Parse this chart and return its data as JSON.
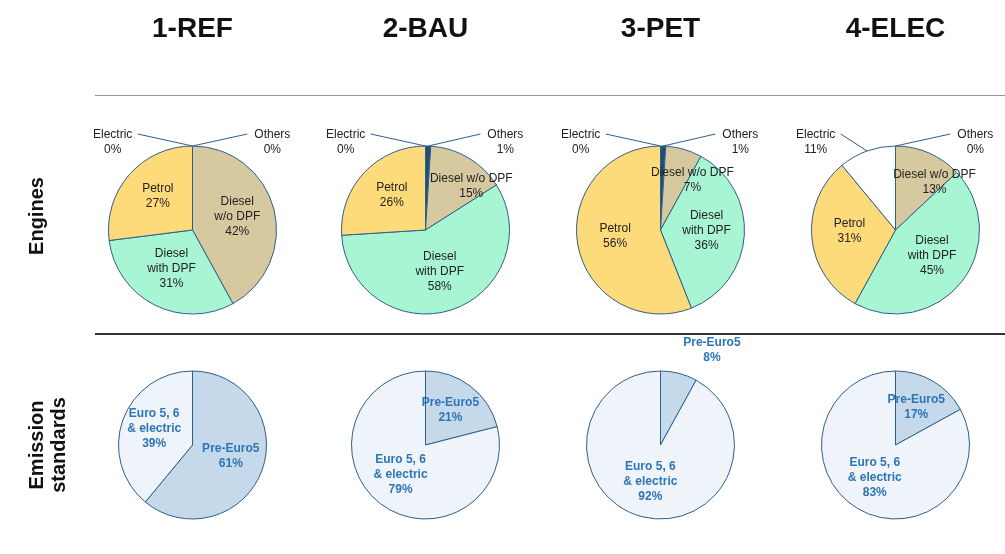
{
  "chart_data": [
    {
      "type": "pie",
      "title": "1-REF",
      "ylabel": "Engines",
      "categories": [
        "Others",
        "Diesel w/o DPF",
        "Diesel with DPF",
        "Petrol",
        "Electric"
      ],
      "values": [
        0,
        42,
        31,
        27,
        0
      ],
      "value_labels": [
        "0%",
        "42%",
        "31%",
        "27%",
        "0%"
      ],
      "colors": [
        "#1f4e79",
        "#d6c9a0",
        "#a8f5d4",
        "#fddb7a",
        "#ffffff"
      ]
    },
    {
      "type": "pie",
      "title": "2-BAU",
      "categories": [
        "Others",
        "Diesel w/o DPF",
        "Diesel with DPF",
        "Petrol",
        "Electric"
      ],
      "values": [
        1,
        15,
        58,
        26,
        0
      ],
      "value_labels": [
        "1%",
        "15%",
        "58%",
        "26%",
        "0%"
      ],
      "colors": [
        "#1f4e79",
        "#d6c9a0",
        "#a8f5d4",
        "#fddb7a",
        "#ffffff"
      ]
    },
    {
      "type": "pie",
      "title": "3-PET",
      "categories": [
        "Others",
        "Diesel w/o DPF",
        "Diesel with DPF",
        "Petrol",
        "Electric"
      ],
      "values": [
        1,
        7,
        36,
        56,
        0
      ],
      "value_labels": [
        "1%",
        "7%",
        "36%",
        "56%",
        "0%"
      ],
      "colors": [
        "#1f4e79",
        "#d6c9a0",
        "#a8f5d4",
        "#fddb7a",
        "#ffffff"
      ]
    },
    {
      "type": "pie",
      "title": "4-ELEC",
      "categories": [
        "Others",
        "Diesel w/o DPF",
        "Diesel with DPF",
        "Petrol",
        "Electric"
      ],
      "values": [
        0,
        13,
        45,
        31,
        11
      ],
      "value_labels": [
        "0%",
        "13%",
        "45%",
        "31%",
        "11%"
      ],
      "colors": [
        "#1f4e79",
        "#d6c9a0",
        "#a8f5d4",
        "#fddb7a",
        "#ffffff"
      ]
    },
    {
      "type": "pie",
      "ylabel": "Emission standards",
      "categories": [
        "Pre-Euro5",
        "Euro 5, 6 & electric"
      ],
      "values": [
        61,
        39
      ],
      "value_labels": [
        "61%",
        "39%"
      ],
      "colors": [
        "#c5d9ea",
        "#eef4fa"
      ]
    },
    {
      "type": "pie",
      "categories": [
        "Pre-Euro5",
        "Euro 5, 6 & electric"
      ],
      "values": [
        21,
        79
      ],
      "value_labels": [
        "21%",
        "79%"
      ],
      "colors": [
        "#c5d9ea",
        "#eef4fa"
      ]
    },
    {
      "type": "pie",
      "categories": [
        "Pre-Euro5",
        "Euro 5, 6 & electric"
      ],
      "values": [
        8,
        92
      ],
      "value_labels": [
        "8%",
        "92%"
      ],
      "colors": [
        "#c5d9ea",
        "#eef4fa"
      ]
    },
    {
      "type": "pie",
      "categories": [
        "Pre-Euro5",
        "Euro 5, 6 & electric"
      ],
      "values": [
        17,
        83
      ],
      "value_labels": [
        "17%",
        "83%"
      ],
      "colors": [
        "#c5d9ea",
        "#eef4fa"
      ]
    }
  ]
}
